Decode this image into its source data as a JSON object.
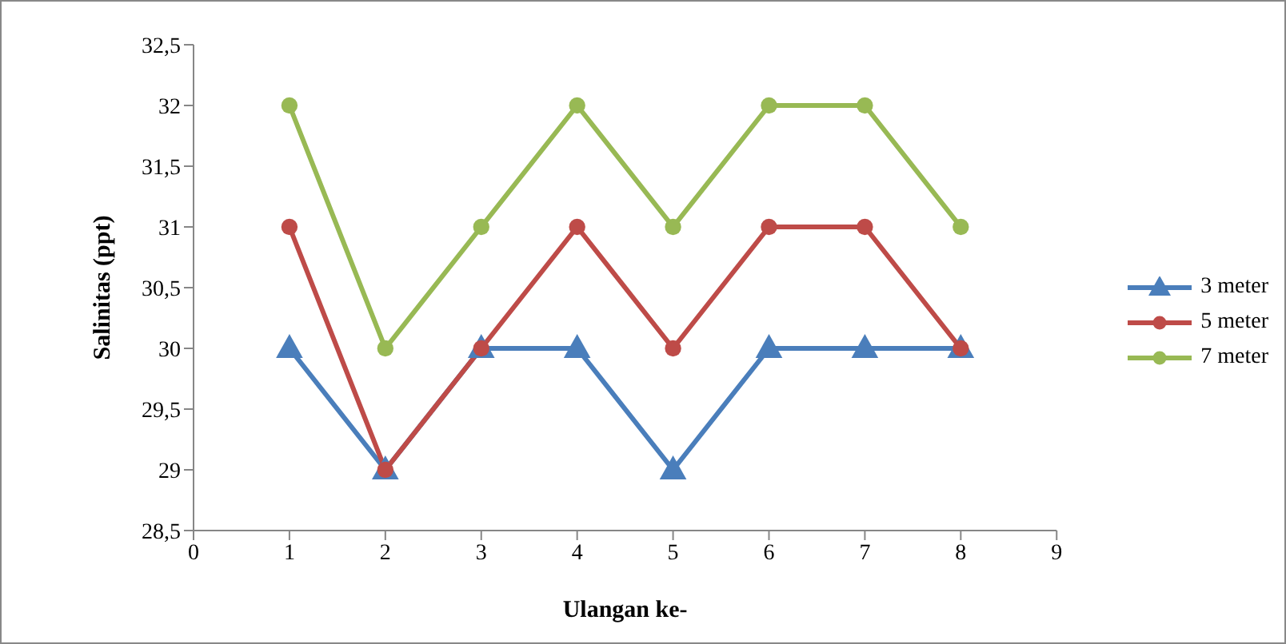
{
  "chart_data": {
    "type": "line",
    "xlabel": "Ulangan ke-",
    "ylabel": "Salinitas (ppt)",
    "x": [
      1,
      2,
      3,
      4,
      5,
      6,
      7,
      8
    ],
    "series": [
      {
        "name": "3 meter",
        "color": "#4a7ebb",
        "marker": "triangle",
        "values": [
          30,
          29,
          30,
          30,
          29,
          30,
          30,
          30
        ]
      },
      {
        "name": "5 meter",
        "color": "#be4b48",
        "marker": "circle",
        "values": [
          31,
          29,
          30,
          31,
          30,
          31,
          31,
          30
        ]
      },
      {
        "name": "7 meter",
        "color": "#98b954",
        "marker": "circle",
        "values": [
          32,
          30,
          31,
          32,
          31,
          32,
          32,
          31
        ]
      }
    ],
    "xlim": [
      0,
      9
    ],
    "xticks": [
      0,
      1,
      2,
      3,
      4,
      5,
      6,
      7,
      8,
      9
    ],
    "ylim": [
      28.5,
      32.5
    ],
    "yticks": [
      {
        "value": 28.5,
        "label": "28,5"
      },
      29,
      {
        "value": 29.5,
        "label": "29,5"
      },
      30,
      {
        "value": 30.5,
        "label": "30,5"
      },
      31,
      {
        "value": 31.5,
        "label": "31,5"
      },
      32,
      {
        "value": 32.5,
        "label": "32,5"
      }
    ],
    "grid": false,
    "legend": "right",
    "line_style": "solid"
  }
}
